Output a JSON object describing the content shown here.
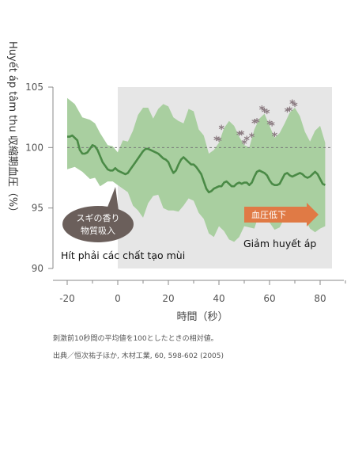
{
  "chart_data": {
    "type": "line",
    "ylabel": "Huyết áp tâm thu 収縮期血圧（%）",
    "xlabel": "時間（秒）",
    "xlim": [
      -20,
      90
    ],
    "ylim": [
      90,
      105
    ],
    "xticks": [
      -20,
      0,
      20,
      40,
      60,
      80
    ],
    "yticks": [
      90,
      95,
      100,
      105
    ],
    "baseline": 100,
    "stimulus_start": 0,
    "series": [
      {
        "style": "mean-line",
        "color": "#4a8a46",
        "points": [
          [
            -20,
            100.9
          ],
          [
            -19,
            100.9
          ],
          [
            -18,
            101.0
          ],
          [
            -17,
            100.8
          ],
          [
            -16,
            100.6
          ],
          [
            -15,
            99.8
          ],
          [
            -14,
            99.5
          ],
          [
            -13,
            99.5
          ],
          [
            -12,
            99.6
          ],
          [
            -11,
            99.9
          ],
          [
            -10,
            100.2
          ],
          [
            -9,
            100.1
          ],
          [
            -8,
            99.8
          ],
          [
            -7,
            99.3
          ],
          [
            -6,
            98.8
          ],
          [
            -5,
            98.5
          ],
          [
            -4,
            98.2
          ],
          [
            -3,
            98.1
          ],
          [
            -2,
            98.1
          ],
          [
            -1,
            98.3
          ],
          [
            0,
            98.1
          ],
          [
            1,
            98.0
          ],
          [
            2,
            97.9
          ],
          [
            3,
            97.8
          ],
          [
            4,
            97.9
          ],
          [
            5,
            98.2
          ],
          [
            6,
            98.5
          ],
          [
            7,
            98.8
          ],
          [
            8,
            99.1
          ],
          [
            9,
            99.4
          ],
          [
            10,
            99.7
          ],
          [
            11,
            99.9
          ],
          [
            12,
            99.9
          ],
          [
            13,
            99.8
          ],
          [
            14,
            99.7
          ],
          [
            15,
            99.6
          ],
          [
            16,
            99.5
          ],
          [
            17,
            99.3
          ],
          [
            18,
            99.1
          ],
          [
            19,
            99.0
          ],
          [
            20,
            98.8
          ],
          [
            21,
            98.3
          ],
          [
            22,
            97.9
          ],
          [
            23,
            98.1
          ],
          [
            24,
            98.6
          ],
          [
            25,
            99.0
          ],
          [
            26,
            99.2
          ],
          [
            27,
            99.0
          ],
          [
            28,
            98.8
          ],
          [
            29,
            98.6
          ],
          [
            30,
            98.6
          ],
          [
            31,
            98.4
          ],
          [
            32,
            98.1
          ],
          [
            33,
            97.8
          ],
          [
            34,
            97.2
          ],
          [
            35,
            96.6
          ],
          [
            36,
            96.3
          ],
          [
            37,
            96.4
          ],
          [
            38,
            96.6
          ],
          [
            39,
            96.7
          ],
          [
            40,
            96.8
          ],
          [
            41,
            96.8
          ],
          [
            42,
            97.1
          ],
          [
            43,
            97.2
          ],
          [
            44,
            97.0
          ],
          [
            45,
            96.8
          ],
          [
            46,
            96.8
          ],
          [
            47,
            97.0
          ],
          [
            48,
            97.1
          ],
          [
            49,
            97.0
          ],
          [
            50,
            97.1
          ],
          [
            51,
            97.1
          ],
          [
            52,
            96.9
          ],
          [
            53,
            97.1
          ],
          [
            54,
            97.6
          ],
          [
            55,
            98.0
          ],
          [
            56,
            98.1
          ],
          [
            57,
            98.0
          ],
          [
            58,
            97.9
          ],
          [
            59,
            97.7
          ],
          [
            60,
            97.3
          ],
          [
            61,
            97.0
          ],
          [
            62,
            96.9
          ],
          [
            63,
            96.9
          ],
          [
            64,
            97.0
          ],
          [
            65,
            97.4
          ],
          [
            66,
            97.8
          ],
          [
            67,
            97.9
          ],
          [
            68,
            97.7
          ],
          [
            69,
            97.6
          ],
          [
            70,
            97.7
          ],
          [
            71,
            97.8
          ],
          [
            72,
            97.9
          ],
          [
            73,
            97.8
          ],
          [
            74,
            97.6
          ],
          [
            75,
            97.5
          ],
          [
            76,
            97.6
          ],
          [
            77,
            97.8
          ],
          [
            78,
            98.0
          ],
          [
            79,
            97.8
          ],
          [
            80,
            97.4
          ],
          [
            81,
            97.0
          ],
          [
            82,
            96.9
          ]
        ]
      },
      {
        "style": "sd-band",
        "color": "#a9cfa0",
        "upper": [
          [
            -20,
            104.1
          ],
          [
            -17,
            103.6
          ],
          [
            -14,
            102.5
          ],
          [
            -11,
            102.3
          ],
          [
            -9,
            102.0
          ],
          [
            -7,
            101.2
          ],
          [
            -4,
            100.2
          ],
          [
            -2,
            100.1
          ],
          [
            0,
            99.6
          ],
          [
            2,
            100.6
          ],
          [
            4,
            100.5
          ],
          [
            6,
            101.4
          ],
          [
            8,
            102.7
          ],
          [
            10,
            103.3
          ],
          [
            12,
            103.3
          ],
          [
            14,
            102.4
          ],
          [
            16,
            103.2
          ],
          [
            18,
            103.6
          ],
          [
            20,
            103.4
          ],
          [
            22,
            102.5
          ],
          [
            24,
            102.2
          ],
          [
            26,
            102.0
          ],
          [
            28,
            103.2
          ],
          [
            30,
            103.0
          ],
          [
            32,
            101.5
          ],
          [
            34,
            101.0
          ],
          [
            36,
            99.5
          ],
          [
            38,
            99.8
          ],
          [
            40,
            100.4
          ],
          [
            42,
            101.6
          ],
          [
            44,
            102.2
          ],
          [
            46,
            101.8
          ],
          [
            48,
            100.9
          ],
          [
            50,
            100.2
          ],
          [
            52,
            100.0
          ],
          [
            54,
            101.5
          ],
          [
            56,
            102.4
          ],
          [
            58,
            102.8
          ],
          [
            60,
            101.8
          ],
          [
            62,
            100.8
          ],
          [
            64,
            101.2
          ],
          [
            66,
            102.0
          ],
          [
            68,
            102.9
          ],
          [
            70,
            103.3
          ],
          [
            72,
            102.6
          ],
          [
            74,
            101.3
          ],
          [
            76,
            100.5
          ],
          [
            78,
            101.4
          ],
          [
            80,
            101.8
          ],
          [
            82,
            100.4
          ]
        ],
        "lower": [
          [
            -20,
            98.2
          ],
          [
            -17,
            98.4
          ],
          [
            -14,
            98.0
          ],
          [
            -11,
            97.4
          ],
          [
            -9,
            97.5
          ],
          [
            -7,
            96.8
          ],
          [
            -4,
            97.2
          ],
          [
            -2,
            97.2
          ],
          [
            0,
            96.9
          ],
          [
            2,
            96.6
          ],
          [
            4,
            96.3
          ],
          [
            6,
            95.2
          ],
          [
            8,
            94.8
          ],
          [
            10,
            94.2
          ],
          [
            12,
            95.4
          ],
          [
            14,
            96.0
          ],
          [
            16,
            96.1
          ],
          [
            18,
            95.0
          ],
          [
            20,
            94.8
          ],
          [
            22,
            94.8
          ],
          [
            24,
            94.7
          ],
          [
            26,
            95.2
          ],
          [
            28,
            95.8
          ],
          [
            30,
            95.6
          ],
          [
            32,
            94.6
          ],
          [
            34,
            94.1
          ],
          [
            36,
            92.9
          ],
          [
            38,
            92.6
          ],
          [
            40,
            93.5
          ],
          [
            42,
            93.1
          ],
          [
            44,
            92.4
          ],
          [
            46,
            92.2
          ],
          [
            48,
            92.6
          ],
          [
            50,
            93.5
          ],
          [
            52,
            93.4
          ],
          [
            54,
            93.3
          ],
          [
            56,
            94.6
          ],
          [
            58,
            94.7
          ],
          [
            60,
            93.8
          ],
          [
            62,
            93.2
          ],
          [
            64,
            93.4
          ],
          [
            66,
            94.2
          ],
          [
            68,
            94.5
          ],
          [
            70,
            93.8
          ],
          [
            72,
            94.2
          ],
          [
            74,
            94.1
          ],
          [
            76,
            93.3
          ],
          [
            78,
            93.0
          ],
          [
            80,
            93.3
          ],
          [
            82,
            93.5
          ]
        ]
      }
    ],
    "significance": {
      "symbol": "*",
      "x": [
        39,
        40,
        41,
        48,
        49,
        50,
        51,
        53,
        54,
        55,
        57,
        58,
        59,
        60,
        61,
        62,
        67,
        68,
        69,
        70
      ]
    },
    "annotations": {
      "bubble_line1": "スギの香り",
      "bubble_line2": "物質吸入",
      "arrow_label": "血圧低下",
      "left_caption": "Hít phải các chất tạo mùi",
      "right_caption": "Giảm huyết áp"
    }
  },
  "notes": {
    "line1": "刺激前10秒間の平均値を100としたときの相対値。",
    "line2": "出典／恒次祐子ほか, 木材工業, 60, 598-602 (2005)"
  },
  "colors": {
    "band": "#a9cfa0",
    "line": "#4a8a46",
    "shade": "#e6e6e6",
    "bubble": "#6b5f5b",
    "arrow": "#e07a45",
    "star": "#8a7a80"
  }
}
